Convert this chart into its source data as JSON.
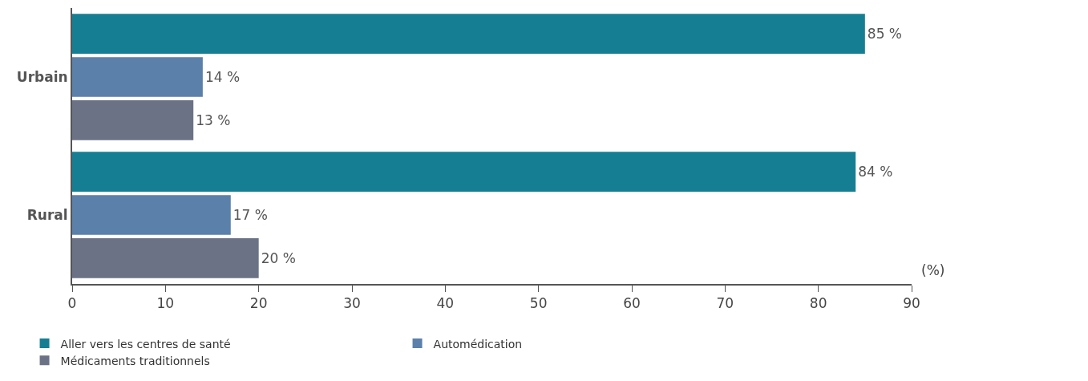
{
  "chart_data": {
    "type": "bar",
    "orientation": "horizontal",
    "categories": [
      "Urbain",
      "Rural"
    ],
    "xlabel": "(%)",
    "series": [
      {
        "name": "Aller vers les centres de santé",
        "color": "#167e92",
        "values": [
          85,
          84
        ],
        "value_labels": [
          "85 %",
          "84 %"
        ]
      },
      {
        "name": "Automédication",
        "color": "#5b80aa",
        "values": [
          14,
          17
        ],
        "value_labels": [
          "14 %",
          "17 %"
        ]
      },
      {
        "name": "Médicaments traditionnels",
        "color": "#6b7285",
        "values": [
          13,
          20
        ],
        "value_labels": [
          "13 %",
          "20 %"
        ]
      }
    ],
    "xlim": [
      0,
      90
    ],
    "xticks": [
      0,
      10,
      20,
      30,
      40,
      50,
      60,
      70,
      80,
      90
    ],
    "legend": "bottom"
  }
}
